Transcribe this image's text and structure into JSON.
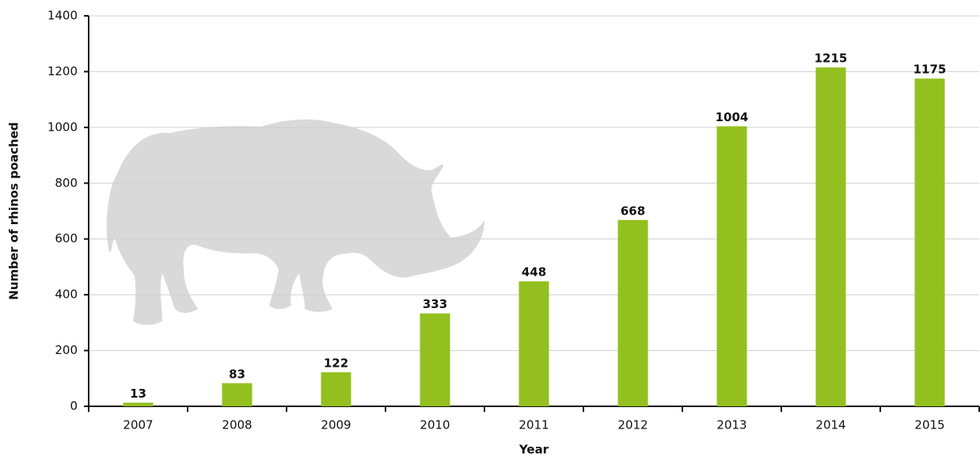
{
  "chart_data": {
    "type": "bar",
    "categories": [
      "2007",
      "2008",
      "2009",
      "2010",
      "2011",
      "2012",
      "2013",
      "2014",
      "2015"
    ],
    "values": [
      13,
      83,
      122,
      333,
      448,
      668,
      1004,
      1215,
      1175
    ],
    "color": "#93c01f",
    "x_label": "Year",
    "y_label": "Number of rhinos poached",
    "ylim": [
      0,
      1400
    ],
    "yticks": [
      0,
      200,
      400,
      600,
      800,
      1000,
      1200,
      1400
    ],
    "grid": true
  }
}
